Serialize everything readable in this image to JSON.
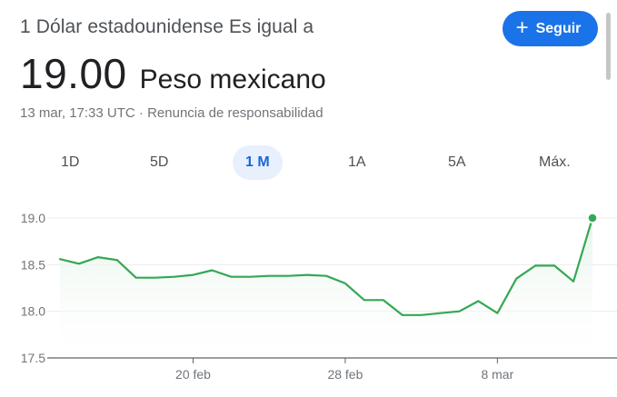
{
  "header": {
    "subtitle": "1 Dólar estadounidense Es igual a",
    "follow_button": {
      "icon": "plus-icon",
      "label": "Seguir"
    },
    "rate_value": "19.00",
    "rate_currency": "Peso mexicano",
    "meta_time": "13 mar, 17:33 UTC",
    "meta_separator": "·",
    "meta_disclaimer": "Renuncia de responsabilidad"
  },
  "range_tabs": [
    {
      "label": "1D",
      "selected": false
    },
    {
      "label": "5D",
      "selected": false
    },
    {
      "label": "1 M",
      "selected": true
    },
    {
      "label": "1A",
      "selected": false
    },
    {
      "label": "5A",
      "selected": false
    },
    {
      "label": "Máx.",
      "selected": false
    }
  ],
  "colors": {
    "accent": "#1a73e8",
    "line": "#34a853",
    "area_top": "#e6f4ea",
    "grid": "#ebebeb",
    "baseline": "#5f6368"
  },
  "chart_data": {
    "type": "area",
    "title": "",
    "xlabel": "",
    "ylabel": "",
    "ylim": [
      17.5,
      19.0
    ],
    "yticks": [
      17.5,
      18.0,
      18.5,
      19.0
    ],
    "ytick_labels": [
      "17.5",
      "18.0",
      "18.5",
      "19.0"
    ],
    "xticks": [
      {
        "label": "20 feb",
        "x": "2023-02-20"
      },
      {
        "label": "28 feb",
        "x": "2023-02-28"
      },
      {
        "label": "8 mar",
        "x": "2023-03-08"
      }
    ],
    "grid": true,
    "series": [
      {
        "x": [
          "2023-02-13",
          "2023-02-14",
          "2023-02-15",
          "2023-02-16",
          "2023-02-17",
          "2023-02-18",
          "2023-02-19",
          "2023-02-20",
          "2023-02-21",
          "2023-02-22",
          "2023-02-23",
          "2023-02-24",
          "2023-02-25",
          "2023-02-26",
          "2023-02-27",
          "2023-02-28",
          "2023-03-01",
          "2023-03-02",
          "2023-03-03",
          "2023-03-04",
          "2023-03-05",
          "2023-03-06",
          "2023-03-07",
          "2023-03-08",
          "2023-03-09",
          "2023-03-10",
          "2023-03-11",
          "2023-03-12",
          "2023-03-13"
        ],
        "values": [
          18.56,
          18.51,
          18.58,
          18.55,
          18.36,
          18.36,
          18.37,
          18.39,
          18.44,
          18.37,
          18.37,
          18.38,
          18.38,
          18.39,
          18.38,
          18.3,
          18.12,
          18.12,
          17.96,
          17.96,
          17.98,
          18.0,
          18.11,
          17.98,
          18.35,
          18.49,
          18.49,
          18.32,
          19.0
        ]
      }
    ]
  }
}
